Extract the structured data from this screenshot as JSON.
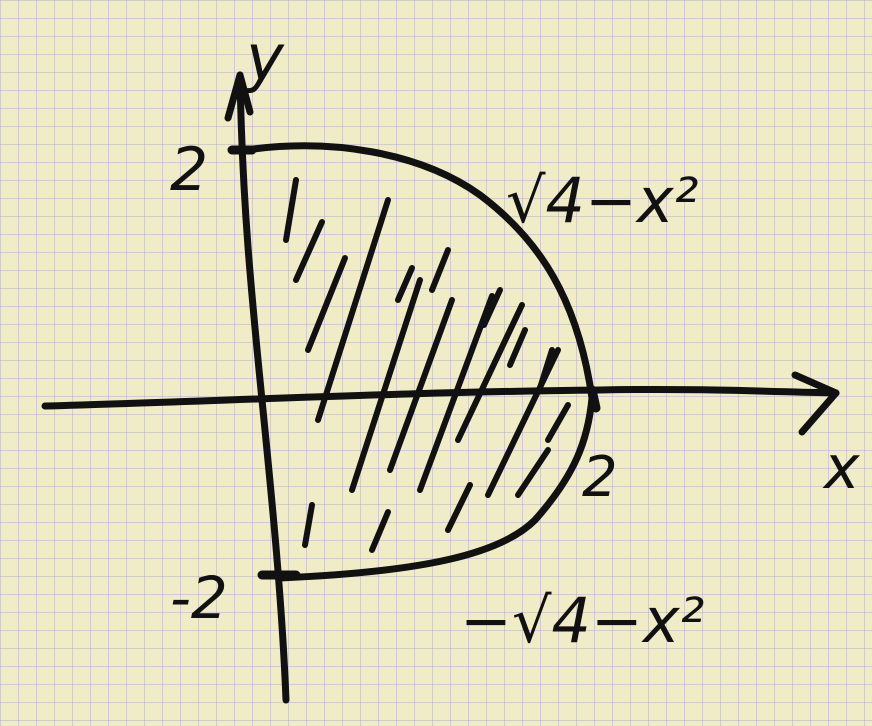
{
  "diagram": {
    "axis_labels": {
      "x": "x",
      "y": "y"
    },
    "tick_labels": {
      "y_top": "2",
      "y_bottom": "-2",
      "x_right": "2"
    },
    "curve_labels": {
      "upper": "√4−x²",
      "lower": "−√4−x²"
    },
    "region": {
      "x_from": 0,
      "x_to": 2,
      "y_lower": "-sqrt(4-x^2)",
      "y_upper": "sqrt(4-x^2)",
      "shaded": true
    },
    "colors": {
      "ink": "#111111",
      "paper": "#f1ecc8",
      "grid": "#aaa5cd"
    }
  }
}
